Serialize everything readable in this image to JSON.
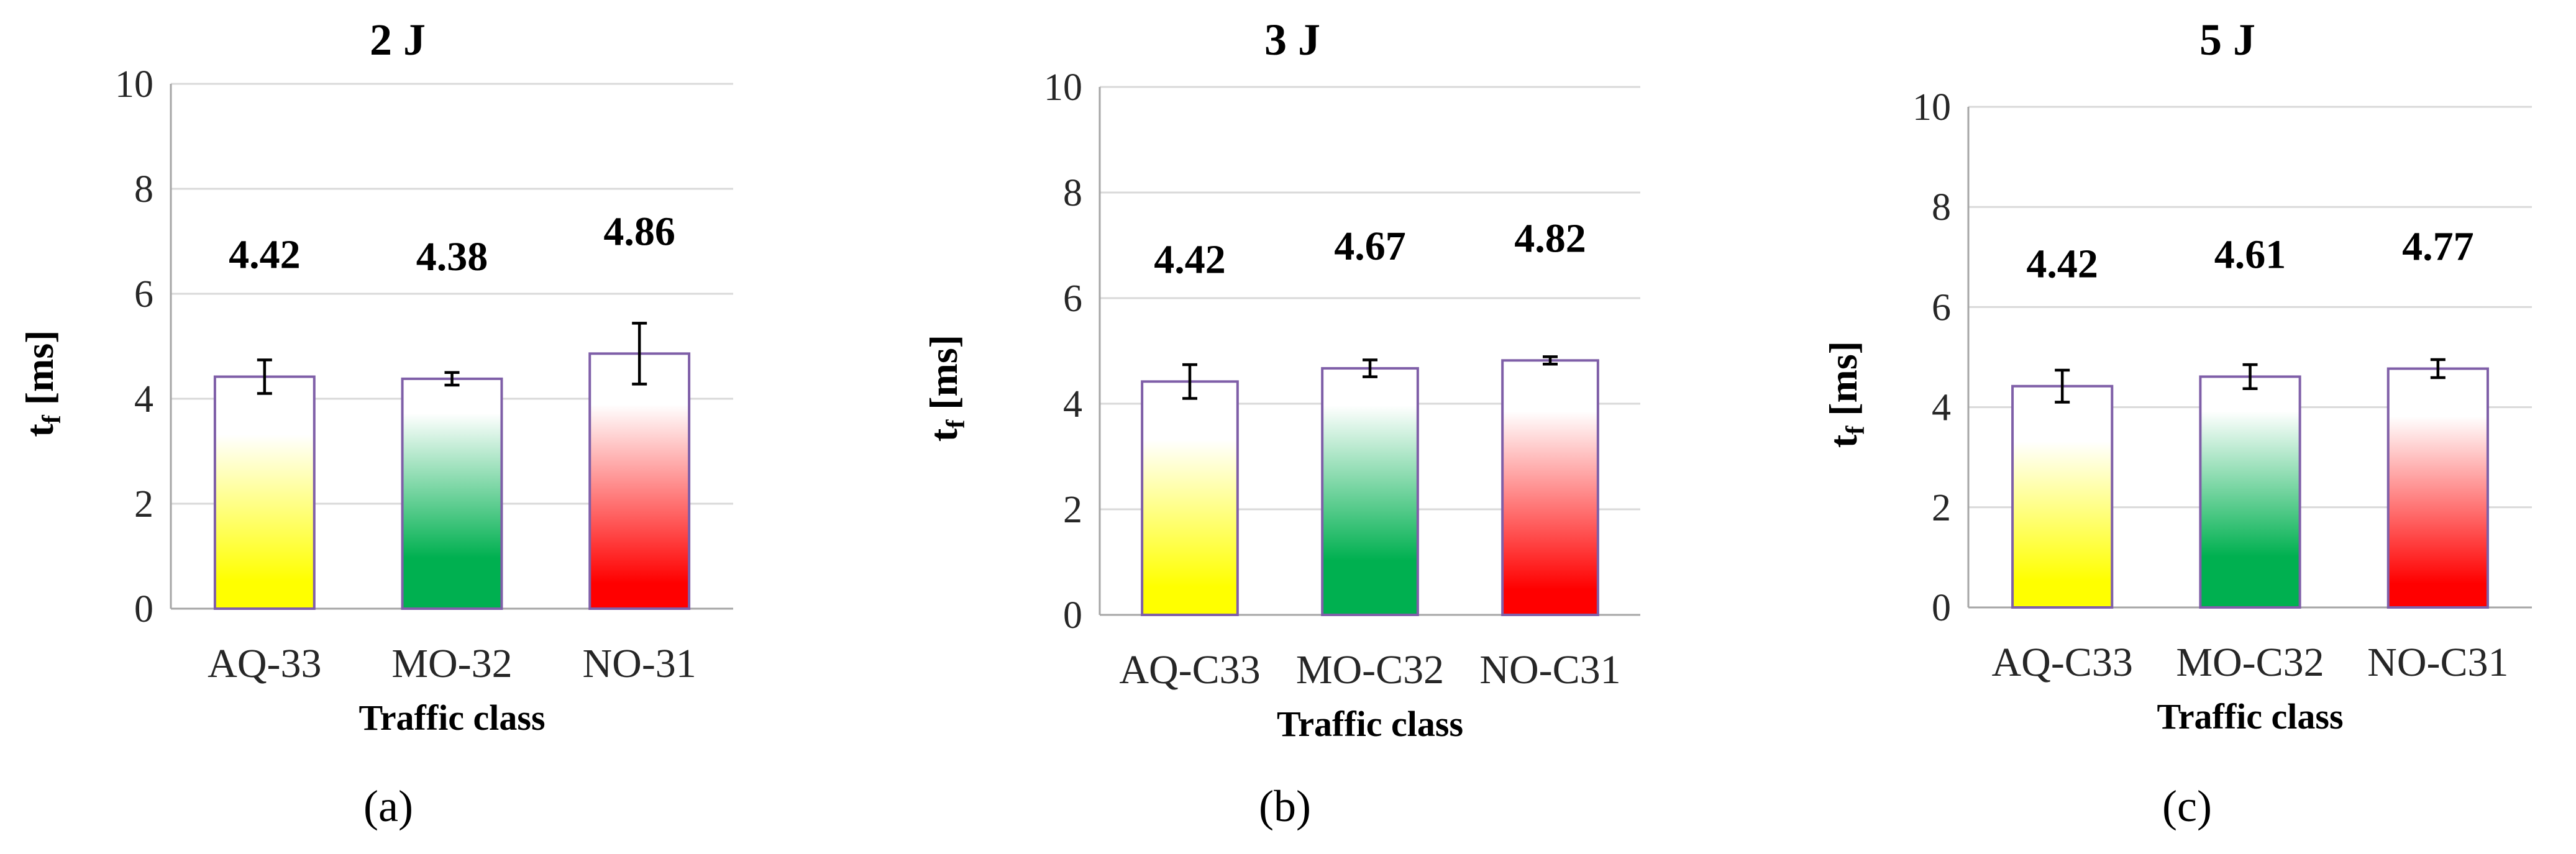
{
  "colors": {
    "bar_outline": "#7f5fa8",
    "gradient_aq": "#ffff00",
    "gradient_mo": "#00b050",
    "gradient_no": "#ff0000",
    "gridline": "#d9d9d9"
  },
  "chart_data": [
    {
      "type": "bar",
      "title": "2 J",
      "panel_label": "(a)",
      "categories": [
        "AQ-33",
        "MO-32",
        "NO-31"
      ],
      "values": [
        4.42,
        4.38,
        4.86
      ],
      "value_labels": [
        "4.42",
        "4.38",
        "4.86"
      ],
      "error": [
        0.32,
        0.12,
        0.58
      ],
      "xlabel": "Traffic class",
      "ylabel": "t",
      "ylabel_sub": "f",
      "ylabel_unit": " [ms]",
      "ylim": [
        0,
        10
      ],
      "yticks": [
        "0",
        "2",
        "4",
        "6",
        "8",
        "10"
      ],
      "grid": true,
      "legend": "none"
    },
    {
      "type": "bar",
      "title": "3 J",
      "panel_label": "(b)",
      "categories": [
        "AQ-C33",
        "MO-C32",
        "NO-C31"
      ],
      "values": [
        4.42,
        4.67,
        4.82
      ],
      "value_labels": [
        "4.42",
        "4.67",
        "4.82"
      ],
      "error": [
        0.32,
        0.16,
        0.07
      ],
      "xlabel": "Traffic class",
      "ylabel": "t",
      "ylabel_sub": "f",
      "ylabel_unit": " [ms]",
      "ylim": [
        0,
        10
      ],
      "yticks": [
        "0",
        "2",
        "4",
        "6",
        "8",
        "10"
      ],
      "grid": true,
      "legend": "none"
    },
    {
      "type": "bar",
      "title": "5 J",
      "panel_label": "(c)",
      "categories": [
        "AQ-C33",
        "MO-C32",
        "NO-C31"
      ],
      "values": [
        4.42,
        4.61,
        4.77
      ],
      "value_labels": [
        "4.42",
        "4.61",
        "4.77"
      ],
      "error": [
        0.32,
        0.24,
        0.18
      ],
      "xlabel": "Traffic class",
      "ylabel": "t",
      "ylabel_sub": "f",
      "ylabel_unit": " [ms]",
      "ylim": [
        0,
        10
      ],
      "yticks": [
        "0",
        "2",
        "4",
        "6",
        "8",
        "10"
      ],
      "grid": true,
      "legend": "none"
    }
  ]
}
